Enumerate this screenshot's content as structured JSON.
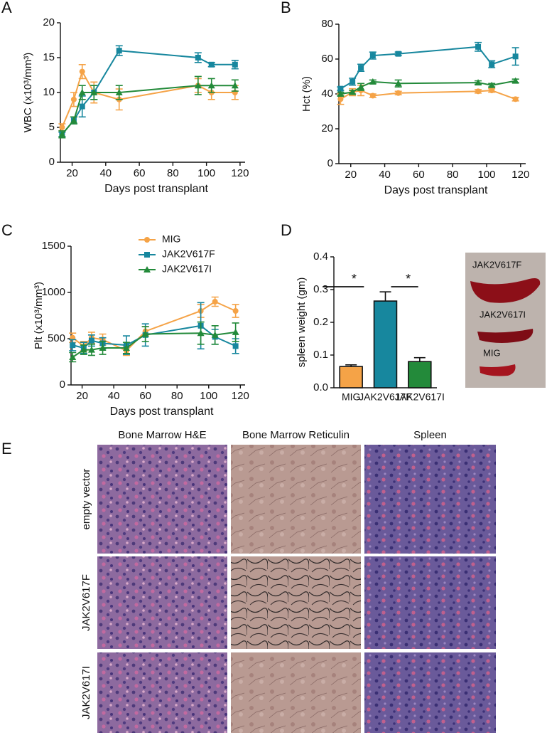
{
  "chart_data": [
    {
      "type": "line",
      "ylabel": "WBC (x10³/mm³)",
      "xlabel": "Days post transplant",
      "x": [
        14,
        21,
        26,
        33,
        48,
        95,
        103,
        117
      ],
      "xlim": [
        13,
        123
      ],
      "xticks": [
        20,
        40,
        60,
        80,
        100,
        120
      ],
      "ylim": [
        0,
        20
      ],
      "yticks": [
        0,
        5,
        10,
        15,
        20
      ],
      "series": [
        {
          "name": "MIG",
          "color": "#f5a347",
          "marker": "circle",
          "values": [
            5,
            9,
            13,
            10,
            9,
            11,
            10,
            10
          ],
          "errors": [
            0.5,
            1,
            1,
            1.5,
            1.5,
            1,
            1,
            1
          ]
        },
        {
          "name": "JAK2V617F",
          "color": "#17879e",
          "marker": "square",
          "values": [
            4,
            6,
            8,
            10,
            16,
            15,
            14,
            14
          ],
          "errors": [
            0.3,
            0.5,
            1.5,
            1,
            0.7,
            0.7,
            0.3,
            0.6
          ]
        },
        {
          "name": "JAK2V617I",
          "color": "#238a3a",
          "marker": "triangle",
          "values": [
            4,
            6,
            10,
            10,
            10,
            11,
            11,
            11
          ],
          "errors": [
            0.5,
            0.5,
            1,
            1,
            1,
            1.3,
            1,
            0.8
          ]
        }
      ]
    },
    {
      "type": "line",
      "ylabel": "Hct (%)",
      "xlabel": "Days post transplant",
      "x": [
        14,
        21,
        26,
        33,
        48,
        95,
        103,
        117
      ],
      "xlim": [
        13,
        123
      ],
      "xticks": [
        20,
        40,
        60,
        80,
        100,
        120
      ],
      "ylim": [
        0,
        80
      ],
      "yticks": [
        0,
        20,
        40,
        60,
        80
      ],
      "series": [
        {
          "name": "MIG",
          "color": "#f5a347",
          "marker": "circle",
          "values": [
            37,
            41,
            42,
            39,
            40.5,
            41.5,
            42,
            37
          ],
          "errors": [
            3,
            2,
            3,
            1,
            1,
            1,
            1,
            1
          ]
        },
        {
          "name": "JAK2V617F",
          "color": "#17879e",
          "marker": "square",
          "values": [
            43,
            47,
            55,
            62,
            63,
            67,
            57,
            61.5
          ],
          "errors": [
            1,
            2,
            2,
            2,
            1,
            2.5,
            2,
            5
          ]
        },
        {
          "name": "JAK2V617I",
          "color": "#238a3a",
          "marker": "triangle",
          "values": [
            40,
            41,
            44,
            47,
            46,
            46.5,
            45,
            47.5
          ],
          "errors": [
            1,
            1,
            2,
            1,
            2,
            1,
            1,
            1
          ]
        }
      ]
    },
    {
      "type": "line",
      "ylabel": "Plt (x10³/mm³)",
      "xlabel": "Days post transplant",
      "legend": true,
      "x": [
        14,
        21,
        26,
        33,
        48,
        60,
        95,
        104,
        117
      ],
      "xlim": [
        13,
        123
      ],
      "xticks": [
        20,
        40,
        60,
        80,
        100,
        120
      ],
      "ylim": [
        0,
        1500
      ],
      "yticks": [
        0,
        500,
        1000,
        1500
      ],
      "series": [
        {
          "name": "MIG",
          "color": "#f5a347",
          "marker": "circle",
          "values": [
            510,
            420,
            510,
            490,
            370,
            580,
            800,
            900,
            800
          ],
          "errors": [
            50,
            50,
            60,
            60,
            50,
            50,
            70,
            50,
            70
          ]
        },
        {
          "name": "JAK2V617F",
          "color": "#17879e",
          "marker": "square",
          "values": [
            430,
            400,
            480,
            450,
            430,
            540,
            640,
            520,
            420
          ],
          "errors": [
            60,
            60,
            60,
            60,
            100,
            120,
            250,
            80,
            80
          ]
        },
        {
          "name": "JAK2V617I",
          "color": "#238a3a",
          "marker": "triangle",
          "values": [
            300,
            380,
            380,
            400,
            400,
            550,
            560,
            540,
            570
          ],
          "errors": [
            50,
            50,
            60,
            70,
            60,
            80,
            120,
            100,
            100
          ]
        }
      ]
    },
    {
      "type": "bar",
      "ylabel": "spleen weight (gm)",
      "categories": [
        "MIG",
        "JAK2V617F",
        "JAK2V617I"
      ],
      "values": [
        0.065,
        0.265,
        0.08
      ],
      "errors": [
        0.005,
        0.028,
        0.012
      ],
      "colors": [
        "#f5a347",
        "#17879e",
        "#238a3a"
      ],
      "ylim": [
        0,
        0.4
      ],
      "yticks": [
        {
          "value": 0,
          "label": "0.0"
        },
        0.1,
        0.2,
        0.3,
        0.4
      ],
      "annotations": [
        "*",
        "*"
      ]
    }
  ],
  "figure": {
    "panel_labels": [
      "A",
      "B",
      "C",
      "D",
      "E"
    ],
    "photo_labels": [
      "JAK2V617F",
      "JAK2V617I",
      "MIG"
    ],
    "histology": {
      "columns": [
        "Bone Marrow H&E",
        "Bone Marrow Reticulin",
        "Spleen"
      ],
      "rows": [
        "empty vector",
        "JAK2V617F",
        "JAK2V617I"
      ]
    }
  }
}
